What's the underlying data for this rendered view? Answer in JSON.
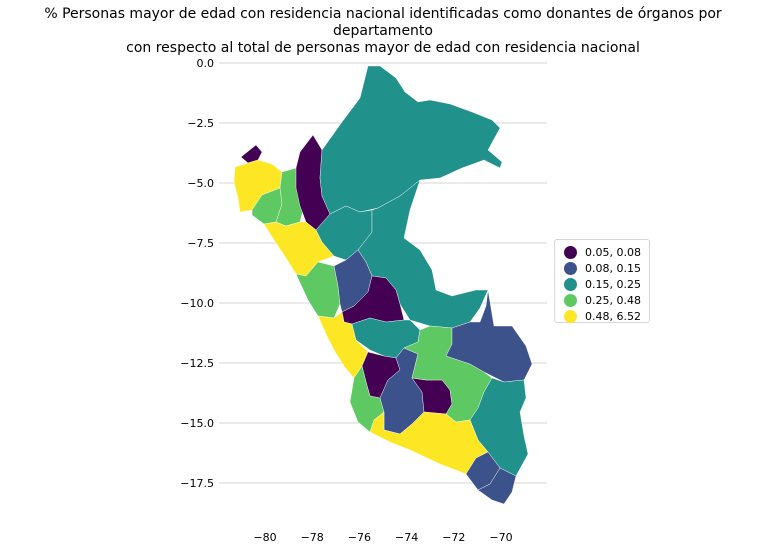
{
  "title": {
    "line1": "% Personas mayor de edad con residencia nacional identificadas como donantes de órganos por departamento",
    "line2": "con respecto al total de personas mayor de edad con residencia nacional"
  },
  "colors": {
    "c1": "#440154",
    "c2": "#3b528b",
    "c3": "#21918c",
    "c4": "#5ec962",
    "c5": "#fde725",
    "grid": "#c8c8c8"
  },
  "legend": [
    {
      "label": "0.05, 0.08",
      "color": "#440154"
    },
    {
      "label": "0.08, 0.15",
      "color": "#3b528b"
    },
    {
      "label": "0.15, 0.25",
      "color": "#21918c"
    },
    {
      "label": "0.25, 0.48",
      "color": "#5ec962"
    },
    {
      "label": "0.48, 6.52",
      "color": "#fde725"
    }
  ],
  "chart_data": {
    "type": "choropleth",
    "x_ticks": [
      "−80",
      "−78",
      "−76",
      "−74",
      "−72",
      "−70"
    ],
    "x_tick_values": [
      -80,
      -78,
      -76,
      -74,
      -72,
      -70
    ],
    "y_ticks": [
      "0.0",
      "−2.5",
      "−5.0",
      "−7.5",
      "−10.0",
      "−12.5",
      "−15.0",
      "−17.5"
    ],
    "y_tick_values": [
      0,
      -2.5,
      -5,
      -7.5,
      -10,
      -12.5,
      -15,
      -17.5
    ],
    "xlim": [
      -81.9,
      -68.2
    ],
    "ylim": [
      -19.1,
      0.5
    ],
    "grid": "horizontal",
    "legend_position": "right",
    "class_breaks": [
      "0.05, 0.08",
      "0.08, 0.15",
      "0.15, 0.25",
      "0.25, 0.48",
      "0.48, 6.52"
    ]
  }
}
